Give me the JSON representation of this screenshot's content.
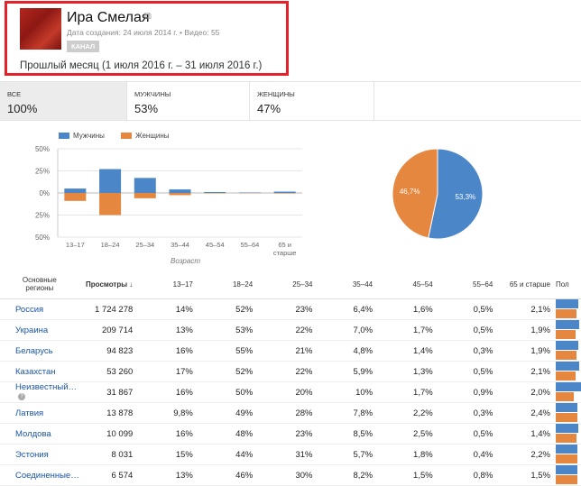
{
  "channel": {
    "title": "Ира Смелая",
    "meta": "Дата создания: 24 июля 2014 г.  •  Видео: 55",
    "badge": "КАНАЛ",
    "period": "Прошлый месяц (1 июля 2016 г. – 31 июля 2016 г.)"
  },
  "tabs": [
    {
      "label": "ВСЕ",
      "value": "100%"
    },
    {
      "label": "МУЖЧИНЫ",
      "value": "53%"
    },
    {
      "label": "ЖЕНЩИНЫ",
      "value": "47%"
    }
  ],
  "colors": {
    "male": "#4a86c8",
    "female": "#e6873f",
    "link": "#1a55a6"
  },
  "chart_data": [
    {
      "type": "bar",
      "legend": [
        "Мужчины",
        "Женщины"
      ],
      "xlabel": "Возраст",
      "categories": [
        "13–17",
        "18–24",
        "25–34",
        "35–44",
        "45–54",
        "55–64",
        "65 и старше"
      ],
      "y_ticks": [
        "50%",
        "25%",
        "0%",
        "25%",
        "50%"
      ],
      "ylim": [
        -50,
        50
      ],
      "series": [
        {
          "name": "Мужчины",
          "values": [
            5,
            27,
            17,
            4,
            1,
            0.5,
            1.5
          ]
        },
        {
          "name": "Женщины",
          "values": [
            -9,
            -25,
            -6,
            -2.5,
            -0.5,
            -0.3,
            -0.6
          ]
        }
      ]
    },
    {
      "type": "pie",
      "labels": [
        "Мужчины",
        "Женщины"
      ],
      "values": [
        53.3,
        46.7
      ],
      "value_labels": [
        "53,3%",
        "46,7%"
      ]
    }
  ],
  "table": {
    "headers": [
      "Основные регионы",
      "Просмотры",
      "13–17",
      "18–24",
      "25–34",
      "35–44",
      "45–54",
      "55–64",
      "65 и старше",
      "Пол"
    ],
    "rows": [
      {
        "region": "Россия",
        "views": "1 724 278",
        "a": [
          "14%",
          "52%",
          "23%",
          "6,4%",
          "1,6%",
          "0,5%",
          "2,1%"
        ],
        "male": 53
      },
      {
        "region": "Украина",
        "views": "209 714",
        "a": [
          "13%",
          "53%",
          "22%",
          "7,0%",
          "1,7%",
          "0,5%",
          "1,9%"
        ],
        "male": 55
      },
      {
        "region": "Беларусь",
        "views": "94 823",
        "a": [
          "16%",
          "55%",
          "21%",
          "4,8%",
          "1,4%",
          "0,3%",
          "1,9%"
        ],
        "male": 52
      },
      {
        "region": "Казахстан",
        "views": "53 260",
        "a": [
          "17%",
          "52%",
          "22%",
          "5,9%",
          "1,3%",
          "0,5%",
          "2,1%"
        ],
        "male": 55
      },
      {
        "region": "Неизвестный…",
        "views": "31 867",
        "a": [
          "16%",
          "50%",
          "20%",
          "10%",
          "1,7%",
          "0,9%",
          "2,0%"
        ],
        "male": 58,
        "help": true
      },
      {
        "region": "Латвия",
        "views": "13 878",
        "a": [
          "9,8%",
          "49%",
          "28%",
          "7,8%",
          "2,2%",
          "0,3%",
          "2,4%"
        ],
        "male": 50
      },
      {
        "region": "Молдова",
        "views": "10 099",
        "a": [
          "16%",
          "48%",
          "23%",
          "8,5%",
          "2,5%",
          "0,5%",
          "1,4%"
        ],
        "male": 52
      },
      {
        "region": "Эстония",
        "views": "8 031",
        "a": [
          "15%",
          "44%",
          "31%",
          "5,7%",
          "1,8%",
          "0,4%",
          "2,2%"
        ],
        "male": 50
      },
      {
        "region": "Соединенные…",
        "views": "6 574",
        "a": [
          "13%",
          "46%",
          "30%",
          "8,2%",
          "1,5%",
          "0,8%",
          "1,5%"
        ],
        "male": 49
      }
    ]
  }
}
